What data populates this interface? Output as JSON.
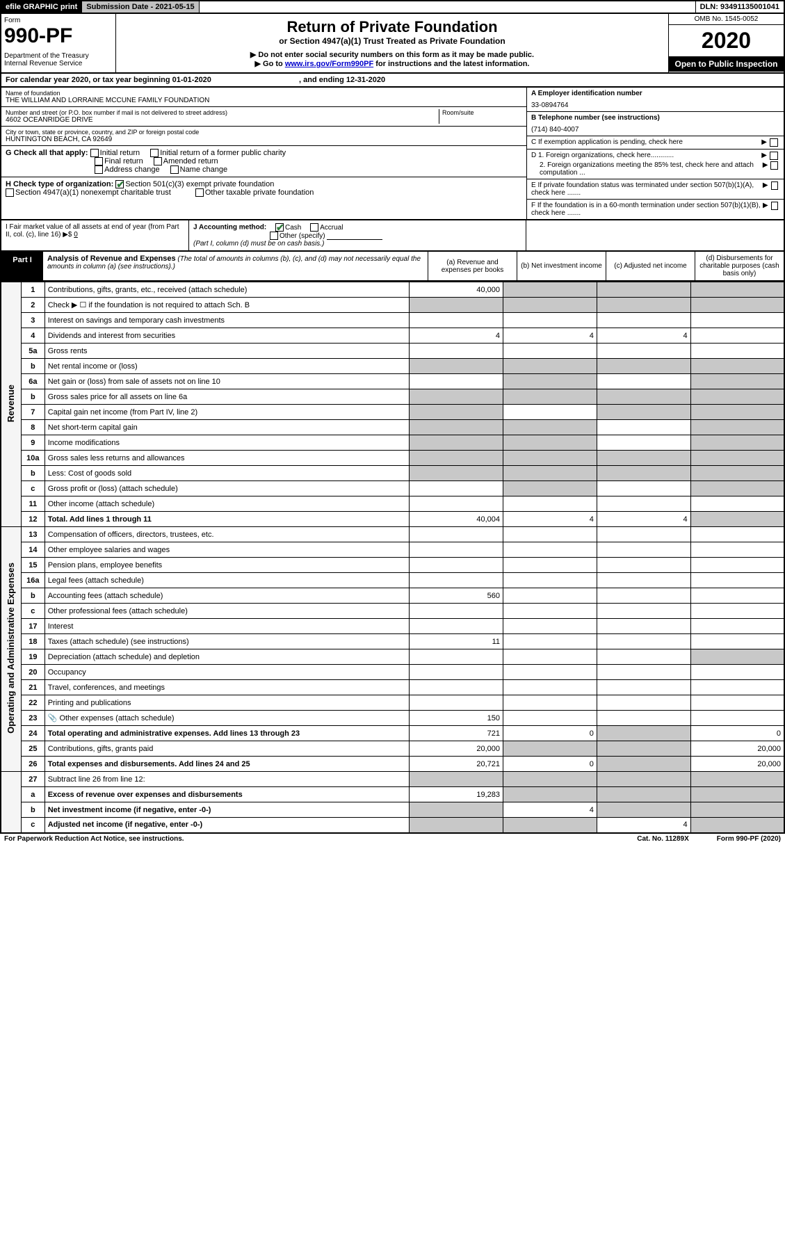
{
  "topbar": {
    "efile": "efile GRAPHIC print",
    "sub": "Submission Date - 2021-05-15",
    "dln": "DLN: 93491135001041"
  },
  "header": {
    "form": "Form",
    "num": "990-PF",
    "dept": "Department of the Treasury\nInternal Revenue Service",
    "title": "Return of Private Foundation",
    "sub1": "or Section 4947(a)(1) Trust Treated as Private Foundation",
    "note1": "▶ Do not enter social security numbers on this form as it may be made public.",
    "note2a": "▶ Go to ",
    "note2link": "www.irs.gov/Form990PF",
    "note2b": " for instructions and the latest information.",
    "omb": "OMB No. 1545-0052",
    "year": "2020",
    "open": "Open to Public Inspection"
  },
  "calyear": {
    "a": "For calendar year 2020, or tax year beginning 01-01-2020",
    "b": ", and ending 12-31-2020"
  },
  "meta": {
    "nameLbl": "Name of foundation",
    "name": "THE WILLIAM AND LORRAINE MCCUNE FAMILY FOUNDATION",
    "addrLbl": "Number and street (or P.O. box number if mail is not delivered to street address)",
    "addr": "4602 OCEANRIDGE DRIVE",
    "roomLbl": "Room/suite",
    "cityLbl": "City or town, state or province, country, and ZIP or foreign postal code",
    "city": "HUNTINGTON BEACH, CA  92649",
    "einLbl": "A Employer identification number",
    "ein": "33-0894764",
    "telLbl": "B Telephone number (see instructions)",
    "tel": "(714) 840-4007",
    "cLbl": "C If exemption application is pending, check here",
    "d1": "D 1. Foreign organizations, check here............",
    "d2": "2. Foreign organizations meeting the 85% test, check here and attach computation ...",
    "e": "E  If private foundation status was terminated under section 507(b)(1)(A), check here .......",
    "f": "F  If the foundation is in a 60-month termination under section 507(b)(1)(B), check here ......."
  },
  "g": {
    "lbl": "G Check all that apply:",
    "o1": "Initial return",
    "o2": "Initial return of a former public charity",
    "o3": "Final return",
    "o4": "Amended return",
    "o5": "Address change",
    "o6": "Name change"
  },
  "h": {
    "lbl": "H Check type of organization:",
    "o1": "Section 501(c)(3) exempt private foundation",
    "o2": "Section 4947(a)(1) nonexempt charitable trust",
    "o3": "Other taxable private foundation"
  },
  "i": {
    "lbl": "I Fair market value of all assets at end of year (from Part II, col. (c), line 16) ▶$ ",
    "val": "0"
  },
  "j": {
    "lbl": "J Accounting method:",
    "o1": "Cash",
    "o2": "Accrual",
    "o3": "Other (specify)",
    "note": "(Part I, column (d) must be on cash basis.)"
  },
  "part1": {
    "tag": "Part I",
    "title": "Analysis of Revenue and Expenses",
    "sub": " (The total of amounts in columns (b), (c), and (d) may not necessarily equal the amounts in column (a) (see instructions).)",
    "ca": "(a)   Revenue and expenses per books",
    "cb": "(b)  Net investment income",
    "cc": "(c)  Adjusted net income",
    "cd": "(d)  Disbursements for charitable purposes (cash basis only)"
  },
  "sections": {
    "rev": "Revenue",
    "exp": "Operating and Administrative Expenses"
  },
  "rows": {
    "r1": {
      "n": "1",
      "d": "Contributions, gifts, grants, etc., received (attach schedule)",
      "a": "40,000"
    },
    "r2": {
      "n": "2",
      "d": "Check ▶ ☐ if the foundation is not required to attach Sch. B"
    },
    "r3": {
      "n": "3",
      "d": "Interest on savings and temporary cash investments"
    },
    "r4": {
      "n": "4",
      "d": "Dividends and interest from securities",
      "a": "4",
      "b": "4",
      "c": "4"
    },
    "r5a": {
      "n": "5a",
      "d": "Gross rents"
    },
    "r5b": {
      "n": "b",
      "d": "Net rental income or (loss)"
    },
    "r6a": {
      "n": "6a",
      "d": "Net gain or (loss) from sale of assets not on line 10"
    },
    "r6b": {
      "n": "b",
      "d": "Gross sales price for all assets on line 6a"
    },
    "r7": {
      "n": "7",
      "d": "Capital gain net income (from Part IV, line 2)"
    },
    "r8": {
      "n": "8",
      "d": "Net short-term capital gain"
    },
    "r9": {
      "n": "9",
      "d": "Income modifications"
    },
    "r10a": {
      "n": "10a",
      "d": "Gross sales less returns and allowances"
    },
    "r10b": {
      "n": "b",
      "d": "Less: Cost of goods sold"
    },
    "r10c": {
      "n": "c",
      "d": "Gross profit or (loss) (attach schedule)"
    },
    "r11": {
      "n": "11",
      "d": "Other income (attach schedule)"
    },
    "r12": {
      "n": "12",
      "d": "Total. Add lines 1 through 11",
      "a": "40,004",
      "b": "4",
      "c": "4",
      "bold": true
    },
    "r13": {
      "n": "13",
      "d": "Compensation of officers, directors, trustees, etc."
    },
    "r14": {
      "n": "14",
      "d": "Other employee salaries and wages"
    },
    "r15": {
      "n": "15",
      "d": "Pension plans, employee benefits"
    },
    "r16a": {
      "n": "16a",
      "d": "Legal fees (attach schedule)"
    },
    "r16b": {
      "n": "b",
      "d": "Accounting fees (attach schedule)",
      "a": "560"
    },
    "r16c": {
      "n": "c",
      "d": "Other professional fees (attach schedule)"
    },
    "r17": {
      "n": "17",
      "d": "Interest"
    },
    "r18": {
      "n": "18",
      "d": "Taxes (attach schedule) (see instructions)",
      "a": "11"
    },
    "r19": {
      "n": "19",
      "d": "Depreciation (attach schedule) and depletion"
    },
    "r20": {
      "n": "20",
      "d": "Occupancy"
    },
    "r21": {
      "n": "21",
      "d": "Travel, conferences, and meetings"
    },
    "r22": {
      "n": "22",
      "d": "Printing and publications"
    },
    "r23": {
      "n": "23",
      "d": "Other expenses (attach schedule)",
      "a": "150",
      "icon": true
    },
    "r24": {
      "n": "24",
      "d": "Total operating and administrative expenses. Add lines 13 through 23",
      "a": "721",
      "b": "0",
      "dd": "0",
      "bold": true
    },
    "r25": {
      "n": "25",
      "d": "Contributions, gifts, grants paid",
      "a": "20,000",
      "dd": "20,000"
    },
    "r26": {
      "n": "26",
      "d": "Total expenses and disbursements. Add lines 24 and 25",
      "a": "20,721",
      "b": "0",
      "dd": "20,000",
      "bold": true
    },
    "r27": {
      "n": "27",
      "d": "Subtract line 26 from line 12:"
    },
    "r27a": {
      "n": "a",
      "d": "Excess of revenue over expenses and disbursements",
      "a": "19,283",
      "bold": true
    },
    "r27b": {
      "n": "b",
      "d": "Net investment income (if negative, enter -0-)",
      "b": "4",
      "bold": true
    },
    "r27c": {
      "n": "c",
      "d": "Adjusted net income (if negative, enter -0-)",
      "c": "4",
      "bold": true
    }
  },
  "footer": {
    "a": "For Paperwork Reduction Act Notice, see instructions.",
    "b": "Cat. No. 11289X",
    "c": "Form 990-PF (2020)"
  }
}
